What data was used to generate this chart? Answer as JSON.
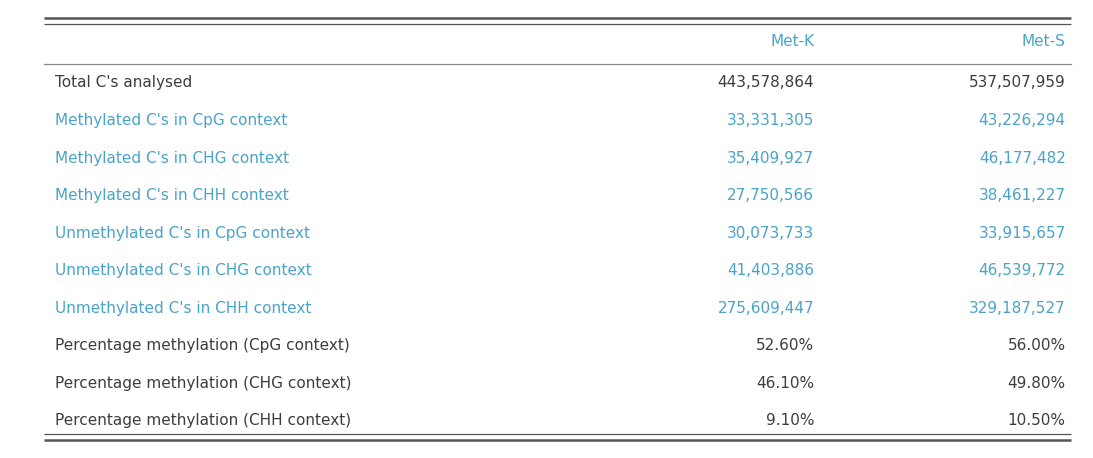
{
  "columns": [
    "",
    "Met-K",
    "Met-S"
  ],
  "rows": [
    {
      "label": "Total C's analysed",
      "met_k": "443,578,864",
      "met_s": "537,507,959",
      "label_color": "#3d3d3d",
      "value_color": "#3d3d3d"
    },
    {
      "label": "Methylated C's in CpG context",
      "met_k": "33,331,305",
      "met_s": "43,226,294",
      "label_color": "#4AA3C8",
      "value_color": "#4AA3C8"
    },
    {
      "label": "Methylated C's in CHG context",
      "met_k": "35,409,927",
      "met_s": "46,177,482",
      "label_color": "#4AA3C8",
      "value_color": "#4AA3C8"
    },
    {
      "label": "Methylated C's in CHH context",
      "met_k": "27,750,566",
      "met_s": "38,461,227",
      "label_color": "#4AA3C8",
      "value_color": "#4AA3C8"
    },
    {
      "label": "Unmethylated C's in CpG context",
      "met_k": "30,073,733",
      "met_s": "33,915,657",
      "label_color": "#4AA3C8",
      "value_color": "#4AA3C8"
    },
    {
      "label": "Unmethylated C's in CHG context",
      "met_k": "41,403,886",
      "met_s": "46,539,772",
      "label_color": "#4AA3C8",
      "value_color": "#4AA3C8"
    },
    {
      "label": "Unmethylated C's in CHH context",
      "met_k": "275,609,447",
      "met_s": "329,187,527",
      "label_color": "#4AA3C8",
      "value_color": "#4AA3C8"
    },
    {
      "label": "Percentage methylation (CpG context)",
      "met_k": "52.60%",
      "met_s": "56.00%",
      "label_color": "#3d3d3d",
      "value_color": "#3d3d3d"
    },
    {
      "label": "Percentage methylation (CHG context)",
      "met_k": "46.10%",
      "met_s": "49.80%",
      "label_color": "#3d3d3d",
      "value_color": "#3d3d3d"
    },
    {
      "label": "Percentage methylation (CHH context)",
      "met_k": "9.10%",
      "met_s": "10.50%",
      "label_color": "#3d3d3d",
      "value_color": "#3d3d3d"
    }
  ],
  "header_color": "#4AA3C8",
  "bg_color": "#FFFFFF",
  "outer_line_color": "#555555",
  "header_sep_color": "#888888",
  "figsize": [
    10.93,
    4.58
  ],
  "dpi": 100,
  "fontsize": 11,
  "header_fontsize": 11
}
